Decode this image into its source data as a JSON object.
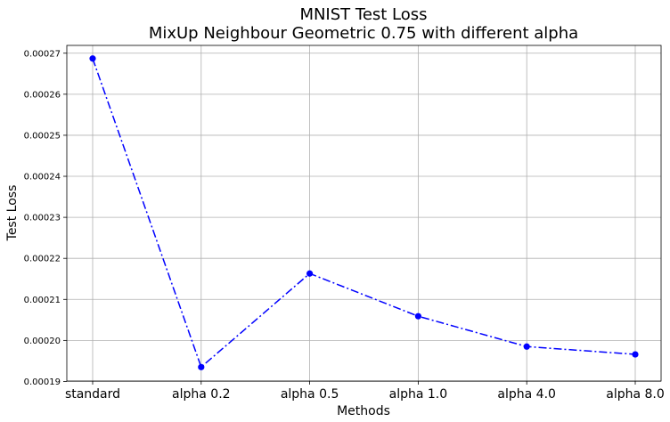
{
  "chart_data": {
    "type": "line",
    "title": "MNIST Test Loss",
    "subtitle": "MixUp Neighbour Geometric 0.75 with different alpha",
    "xlabel": "Methods",
    "ylabel": "Test Loss",
    "categories": [
      "standard",
      "alpha 0.2",
      "alpha 0.5",
      "alpha 1.0",
      "alpha 4.0",
      "alpha 8.0"
    ],
    "values": [
      0.0002687,
      0.0001935,
      0.0002163,
      0.0002059,
      0.0001985,
      0.0001966
    ],
    "yticks": [
      "0.00019",
      "0.00020",
      "0.00021",
      "0.00022",
      "0.00023",
      "0.00024",
      "0.00025",
      "0.00026",
      "0.00027"
    ],
    "ylim": [
      0.0001901,
      0.0002719
    ],
    "line_style": "dash-dot",
    "marker": "circle",
    "color": "#0000ff",
    "grid": true
  }
}
